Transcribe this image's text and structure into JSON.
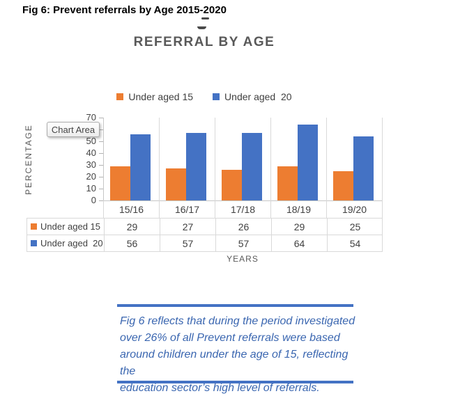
{
  "document": {
    "heading": "Fig 6: Prevent referrals by Age 2015-2020"
  },
  "chart": {
    "title": "REFERRAL BY AGE",
    "tooltip_label": "Chart Area",
    "y_axis_title": "PERCENTAGE",
    "x_axis_title": "YEARS"
  },
  "chart_data": {
    "type": "bar",
    "title": "REFERRAL BY AGE",
    "categories": [
      "15/16",
      "16/17",
      "17/18",
      "18/19",
      "19/20"
    ],
    "series": [
      {
        "name": "Under aged 15",
        "color": "#ED7D31",
        "values": [
          29,
          27,
          26,
          29,
          25
        ]
      },
      {
        "name": "Under aged  20",
        "color": "#4472C4",
        "values": [
          56,
          57,
          57,
          64,
          54
        ]
      }
    ],
    "xlabel": "YEARS",
    "ylabel": "PERCENTAGE",
    "ylim": [
      0,
      70
    ],
    "yticks": [
      0,
      10,
      20,
      30,
      40,
      50,
      60,
      70
    ],
    "legend_position": "top",
    "gridlines": "vertical-only",
    "show_data_table": true
  },
  "note": {
    "lines": [
      "Fig 6 reflects that during the period investigated",
      "over 26% of all Prevent referrals were based",
      "around children under the age of 15, reflecting the",
      "education sector’s high level of referrals."
    ],
    "accent_color": "#4472C4",
    "text_color": "#3A66B0"
  },
  "colors": {
    "series1": "#ED7D31",
    "series2": "#4472C4",
    "chart_title": "#595959",
    "axis_text": "#404040",
    "grid": "#D9D9D9"
  }
}
